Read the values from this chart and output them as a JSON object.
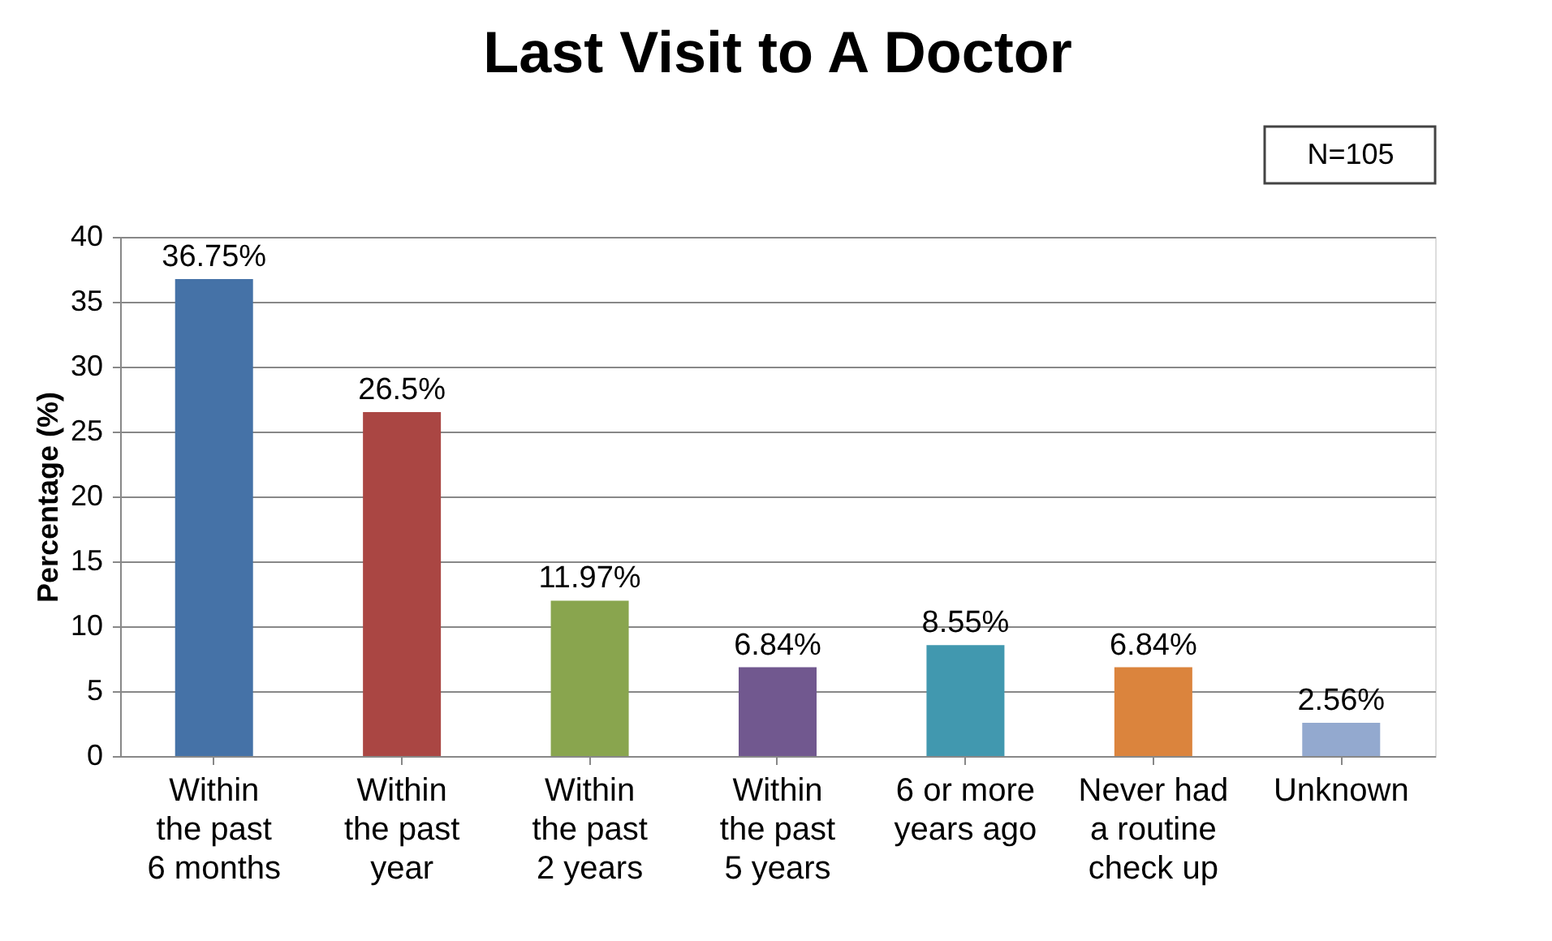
{
  "chart_data": {
    "type": "bar",
    "title": "Last Visit to A Doctor",
    "ylabel": "Percentage (%)",
    "categories": [
      "Within the past 6 months",
      "Within the past year",
      "Within the past 2 years",
      "Within the past 5 years",
      "6 or more years ago",
      "Never had a routine check up",
      "Unknown"
    ],
    "values": [
      36.75,
      26.5,
      11.97,
      6.84,
      8.55,
      6.84,
      2.56
    ],
    "value_labels": [
      "36.75%",
      "26.5%",
      "11.97%",
      "6.84%",
      "8.55%",
      "6.84%",
      "2.56%"
    ],
    "colors": [
      "#4572a7",
      "#aa4643",
      "#89a54e",
      "#71588f",
      "#4198af",
      "#db843d",
      "#93a9cf"
    ],
    "ylim": [
      0,
      40
    ],
    "yticks": [
      0,
      5,
      10,
      15,
      20,
      25,
      30,
      35,
      40
    ],
    "grid": "y",
    "annotations": [
      "N=105"
    ]
  }
}
